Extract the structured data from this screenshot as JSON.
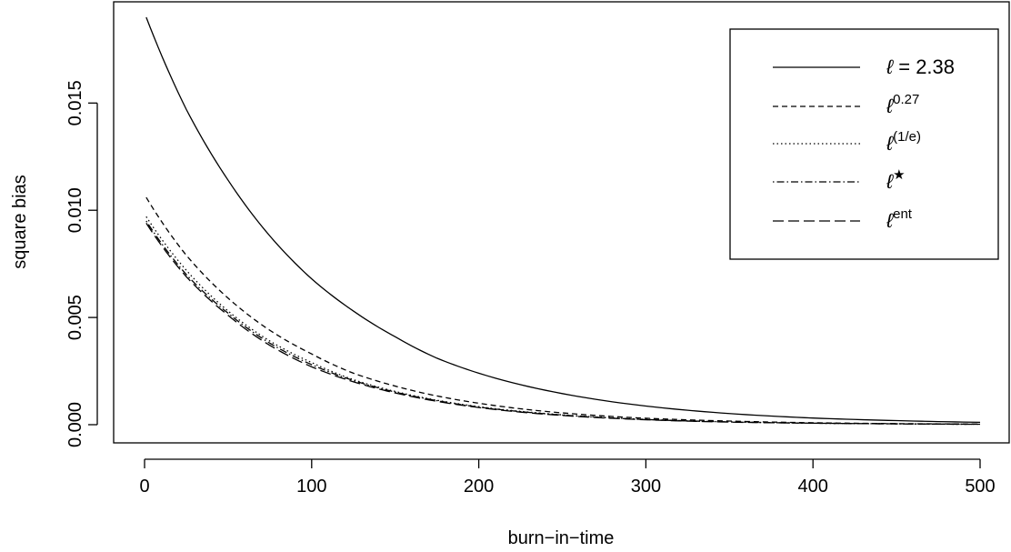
{
  "chart_data": {
    "type": "line",
    "title": "",
    "xlabel": "burn−in−time",
    "ylabel": "square bias",
    "xlim": [
      0,
      500
    ],
    "ylim": [
      0,
      0.019
    ],
    "xticks": [
      0,
      100,
      200,
      300,
      400,
      500
    ],
    "xtick_labels": [
      "0",
      "100",
      "200",
      "300",
      "400",
      "500"
    ],
    "yticks": [
      0.0,
      0.005,
      0.01,
      0.015
    ],
    "ytick_labels": [
      "0.000",
      "0.005",
      "0.010",
      "0.015"
    ],
    "grid": false,
    "legend_position": "top-right",
    "series": [
      {
        "name": "ℓ = 2.38",
        "legend": {
          "base": "ℓ",
          "sup": "",
          "suffix": " = 2.38"
        },
        "line_style": "solid",
        "x": [
          1,
          25,
          50,
          75,
          100,
          125,
          150,
          175,
          200,
          250,
          300,
          350,
          400,
          450,
          500
        ],
        "y": [
          0.019,
          0.0147,
          0.0114,
          0.0088,
          0.0068,
          0.0053,
          0.0041,
          0.0031,
          0.0024,
          0.00145,
          0.00087,
          0.00052,
          0.00031,
          0.00019,
          0.00011
        ]
      },
      {
        "name": "ℓ^0.27",
        "legend": {
          "base": "ℓ",
          "sup": "0.27",
          "suffix": ""
        },
        "line_style": "dashed",
        "x": [
          1,
          25,
          50,
          75,
          100,
          125,
          150,
          175,
          200,
          250,
          300,
          350,
          400,
          450,
          500
        ],
        "y": [
          0.0106,
          0.0079,
          0.0059,
          0.0044,
          0.0033,
          0.0024,
          0.0018,
          0.00134,
          0.001,
          0.00055,
          0.0003,
          0.00017,
          9e-05,
          5e-05,
          3e-05
        ]
      },
      {
        "name": "ℓ^(1/e)",
        "legend": {
          "base": "ℓ",
          "sup": "(1/e)",
          "suffix": ""
        },
        "line_style": "dotted",
        "x": [
          1,
          25,
          50,
          75,
          100,
          125,
          150,
          175,
          200,
          250,
          300,
          350,
          400,
          450,
          500
        ],
        "y": [
          0.0097,
          0.0072,
          0.0053,
          0.0039,
          0.0029,
          0.0021,
          0.00155,
          0.00114,
          0.00084,
          0.00046,
          0.00025,
          0.00013,
          7e-05,
          4e-05,
          2e-05
        ]
      },
      {
        "name": "ℓ^★",
        "legend": {
          "base": "ℓ",
          "sup": "★",
          "suffix": ""
        },
        "line_style": "dotdash",
        "x": [
          1,
          25,
          50,
          75,
          100,
          125,
          150,
          175,
          200,
          250,
          300,
          350,
          400,
          450,
          500
        ],
        "y": [
          0.0095,
          0.007,
          0.0052,
          0.0038,
          0.0028,
          0.00206,
          0.00152,
          0.00112,
          0.00082,
          0.00045,
          0.00024,
          0.00013,
          7e-05,
          4e-05,
          2e-05
        ]
      },
      {
        "name": "ℓ^ent",
        "legend": {
          "base": "ℓ",
          "sup": "ent",
          "suffix": ""
        },
        "line_style": "longdash",
        "x": [
          1,
          25,
          50,
          75,
          100,
          125,
          150,
          175,
          200,
          250,
          300,
          350,
          400,
          450,
          500
        ],
        "y": [
          0.0094,
          0.0069,
          0.0051,
          0.0037,
          0.0027,
          0.002,
          0.00148,
          0.00109,
          0.0008,
          0.00043,
          0.00023,
          0.00012,
          7e-05,
          4e-05,
          2e-05
        ]
      }
    ]
  }
}
